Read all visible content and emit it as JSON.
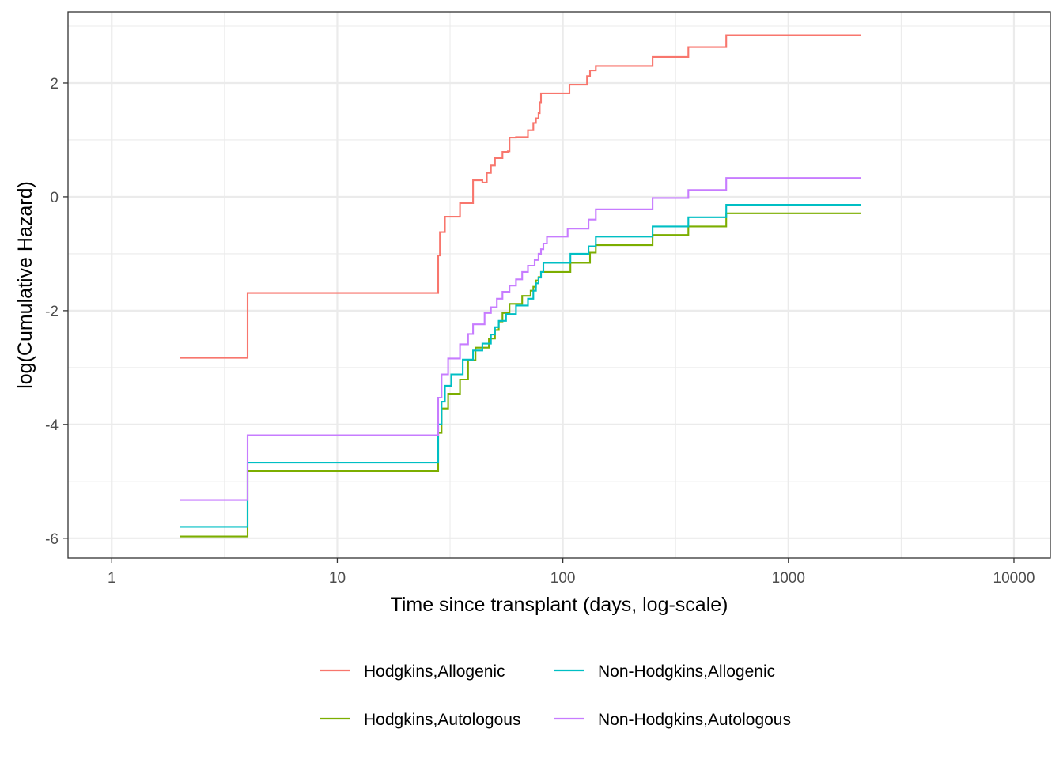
{
  "chart_data": {
    "type": "line",
    "step": true,
    "title": "",
    "xlabel": "Time since transplant (days, log-scale)",
    "ylabel": "log(Cumulative Hazard)",
    "xscale": "log10",
    "xlim": [
      0.64,
      14500
    ],
    "ylim": [
      -6.35,
      3.25
    ],
    "xticks": [
      1,
      10,
      100,
      1000,
      10000
    ],
    "xtick_labels": [
      "1",
      "10",
      "100",
      "1000",
      "10000"
    ],
    "yticks": [
      2,
      0,
      -2,
      -4,
      -6
    ],
    "ytick_labels": [
      "2",
      "0",
      "-2",
      "-4",
      "-6"
    ],
    "grid": true,
    "legend_position": "bottom",
    "series": [
      {
        "name": "Hodgkins,Allogenic",
        "color": "#F8766D",
        "x": [
          2,
          4,
          28,
          28.5,
          30,
          31,
          35,
          37,
          40,
          41,
          44,
          46,
          48,
          50,
          54,
          57,
          58,
          62,
          70,
          74,
          76,
          78,
          79,
          80,
          82,
          107,
          128,
          132,
          140,
          250,
          360,
          530,
          2100
        ],
        "y": [
          -2.83,
          -1.69,
          -1.03,
          -0.62,
          -0.35,
          -0.35,
          -0.11,
          -0.11,
          0.29,
          0.29,
          0.25,
          0.42,
          0.55,
          0.68,
          0.79,
          0.8,
          1.04,
          1.05,
          1.17,
          1.3,
          1.38,
          1.47,
          1.66,
          1.82,
          1.82,
          1.97,
          2.12,
          2.22,
          2.3,
          2.46,
          2.63,
          2.84,
          2.84
        ]
      },
      {
        "name": "Hodgkins,Autologous",
        "color": "#7CAE00",
        "x": [
          2,
          4,
          28,
          29,
          31,
          35,
          38,
          41,
          47,
          50,
          52,
          54,
          58,
          66,
          72,
          74,
          76,
          78,
          80,
          82,
          108,
          132,
          140,
          250,
          360,
          530,
          2100
        ],
        "y": [
          -5.97,
          -4.82,
          -4.15,
          -3.72,
          -3.46,
          -3.21,
          -2.87,
          -2.65,
          -2.49,
          -2.34,
          -2.19,
          -2.04,
          -1.88,
          -1.74,
          -1.65,
          -1.58,
          -1.47,
          -1.41,
          -1.32,
          -1.32,
          -1.16,
          -0.98,
          -0.85,
          -0.67,
          -0.52,
          -0.29,
          -0.29
        ]
      },
      {
        "name": "Non-Hodgkins,Allogenic",
        "color": "#00BFC4",
        "x": [
          2,
          4,
          28,
          29,
          30,
          32,
          36,
          40,
          44,
          48,
          50,
          52,
          56,
          62,
          70,
          74,
          76,
          78,
          80,
          82,
          108,
          130,
          140,
          250,
          360,
          530,
          2100
        ],
        "y": [
          -5.8,
          -4.67,
          -4.0,
          -3.6,
          -3.32,
          -3.12,
          -2.86,
          -2.7,
          -2.58,
          -2.42,
          -2.29,
          -2.18,
          -2.06,
          -1.91,
          -1.79,
          -1.65,
          -1.52,
          -1.42,
          -1.32,
          -1.16,
          -1.0,
          -0.87,
          -0.7,
          -0.52,
          -0.36,
          -0.14,
          -0.14
        ]
      },
      {
        "name": "Non-Hodgkins,Autologous",
        "color": "#C77CFF",
        "x": [
          2,
          4,
          28,
          29,
          31,
          35,
          38,
          40,
          45,
          48,
          51,
          54,
          58,
          62,
          66,
          70,
          75,
          78,
          80,
          82,
          85,
          105,
          130,
          140,
          250,
          360,
          530,
          2100
        ],
        "y": [
          -5.33,
          -4.19,
          -3.53,
          -3.12,
          -2.84,
          -2.59,
          -2.41,
          -2.24,
          -2.04,
          -1.94,
          -1.79,
          -1.67,
          -1.56,
          -1.45,
          -1.32,
          -1.21,
          -1.11,
          -1.0,
          -0.92,
          -0.82,
          -0.7,
          -0.56,
          -0.4,
          -0.22,
          -0.02,
          0.12,
          0.33,
          0.33
        ]
      }
    ]
  }
}
